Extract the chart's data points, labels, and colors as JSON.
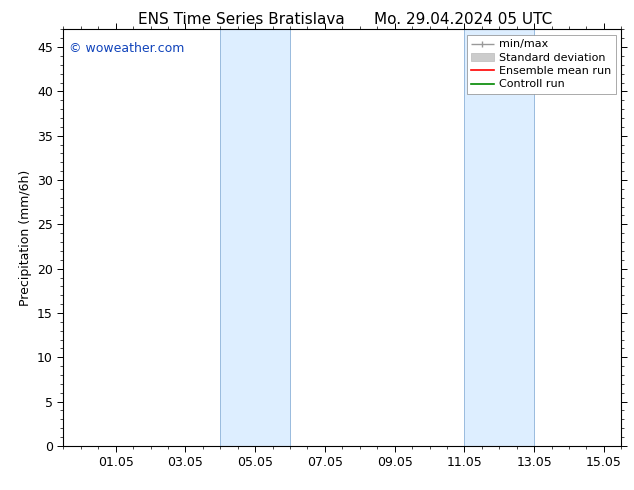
{
  "title_left": "ENS Time Series Bratislava",
  "title_right": "Mo. 29.04.2024 05 UTC",
  "ylabel": "Precipitation (mm/6h)",
  "watermark": "© woweather.com",
  "watermark_color": "#1144bb",
  "xlim_min": -0.5,
  "xlim_max": 15.5,
  "ylim": [
    0,
    47
  ],
  "yticks": [
    0,
    5,
    10,
    15,
    20,
    25,
    30,
    35,
    40,
    45
  ],
  "xtick_labels": [
    "01.05",
    "03.05",
    "05.05",
    "07.05",
    "09.05",
    "11.05",
    "13.05",
    "15.05"
  ],
  "xtick_positions": [
    1.0,
    3.0,
    5.0,
    7.0,
    9.0,
    11.0,
    13.0,
    15.0
  ],
  "shaded_regions": [
    {
      "x_start": 4.0,
      "x_end": 6.0
    },
    {
      "x_start": 11.0,
      "x_end": 13.0
    }
  ],
  "shade_color": "#ddeeff",
  "shade_edge_color": "#99bbdd",
  "background_color": "#ffffff",
  "title_fontsize": 11,
  "label_fontsize": 9,
  "tick_fontsize": 9,
  "watermark_fontsize": 9,
  "legend_fontsize": 8
}
